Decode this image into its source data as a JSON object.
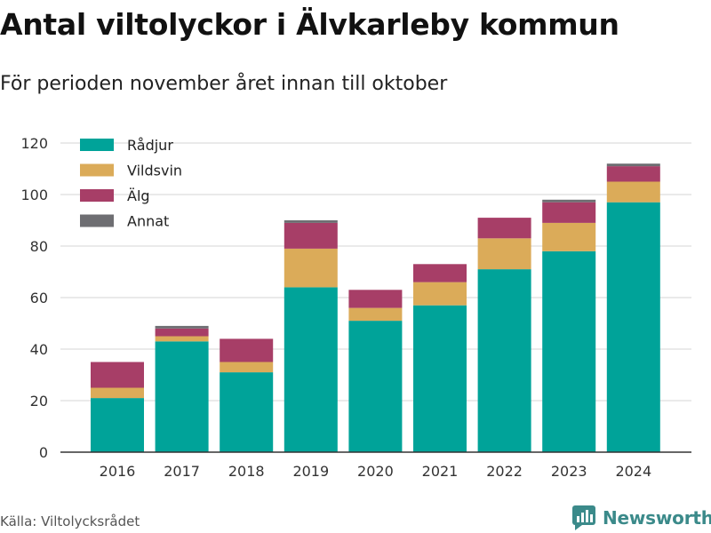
{
  "title": "Antal viltolyckor i Älvkarleby kommun",
  "subtitle": "För perioden november året innan till oktober",
  "source": "Källa: Viltolycksrådet",
  "brand": {
    "name": "Newsworthy",
    "icon": "newsworthy-logo-icon",
    "color": "#3b8a8a"
  },
  "chart_data": {
    "type": "bar",
    "stacked": true,
    "categories": [
      "2016",
      "2017",
      "2018",
      "2019",
      "2020",
      "2021",
      "2022",
      "2023",
      "2024"
    ],
    "series": [
      {
        "name": "Rådjur",
        "color": "#00a399",
        "values": [
          21,
          43,
          31,
          64,
          51,
          57,
          71,
          78,
          97
        ]
      },
      {
        "name": "Vildsvin",
        "color": "#dbab59",
        "values": [
          4,
          2,
          4,
          15,
          5,
          9,
          12,
          11,
          8
        ]
      },
      {
        "name": "Älg",
        "color": "#a73e67",
        "values": [
          10,
          3,
          9,
          10,
          7,
          7,
          8,
          8,
          6
        ]
      },
      {
        "name": "Annat",
        "color": "#6e6e72",
        "values": [
          0,
          1,
          0,
          1,
          0,
          0,
          0,
          1,
          1
        ]
      }
    ],
    "ylim": [
      0,
      120
    ],
    "yticks": [
      0,
      20,
      40,
      60,
      80,
      100,
      120
    ],
    "grid": true,
    "legend": "top-left"
  }
}
